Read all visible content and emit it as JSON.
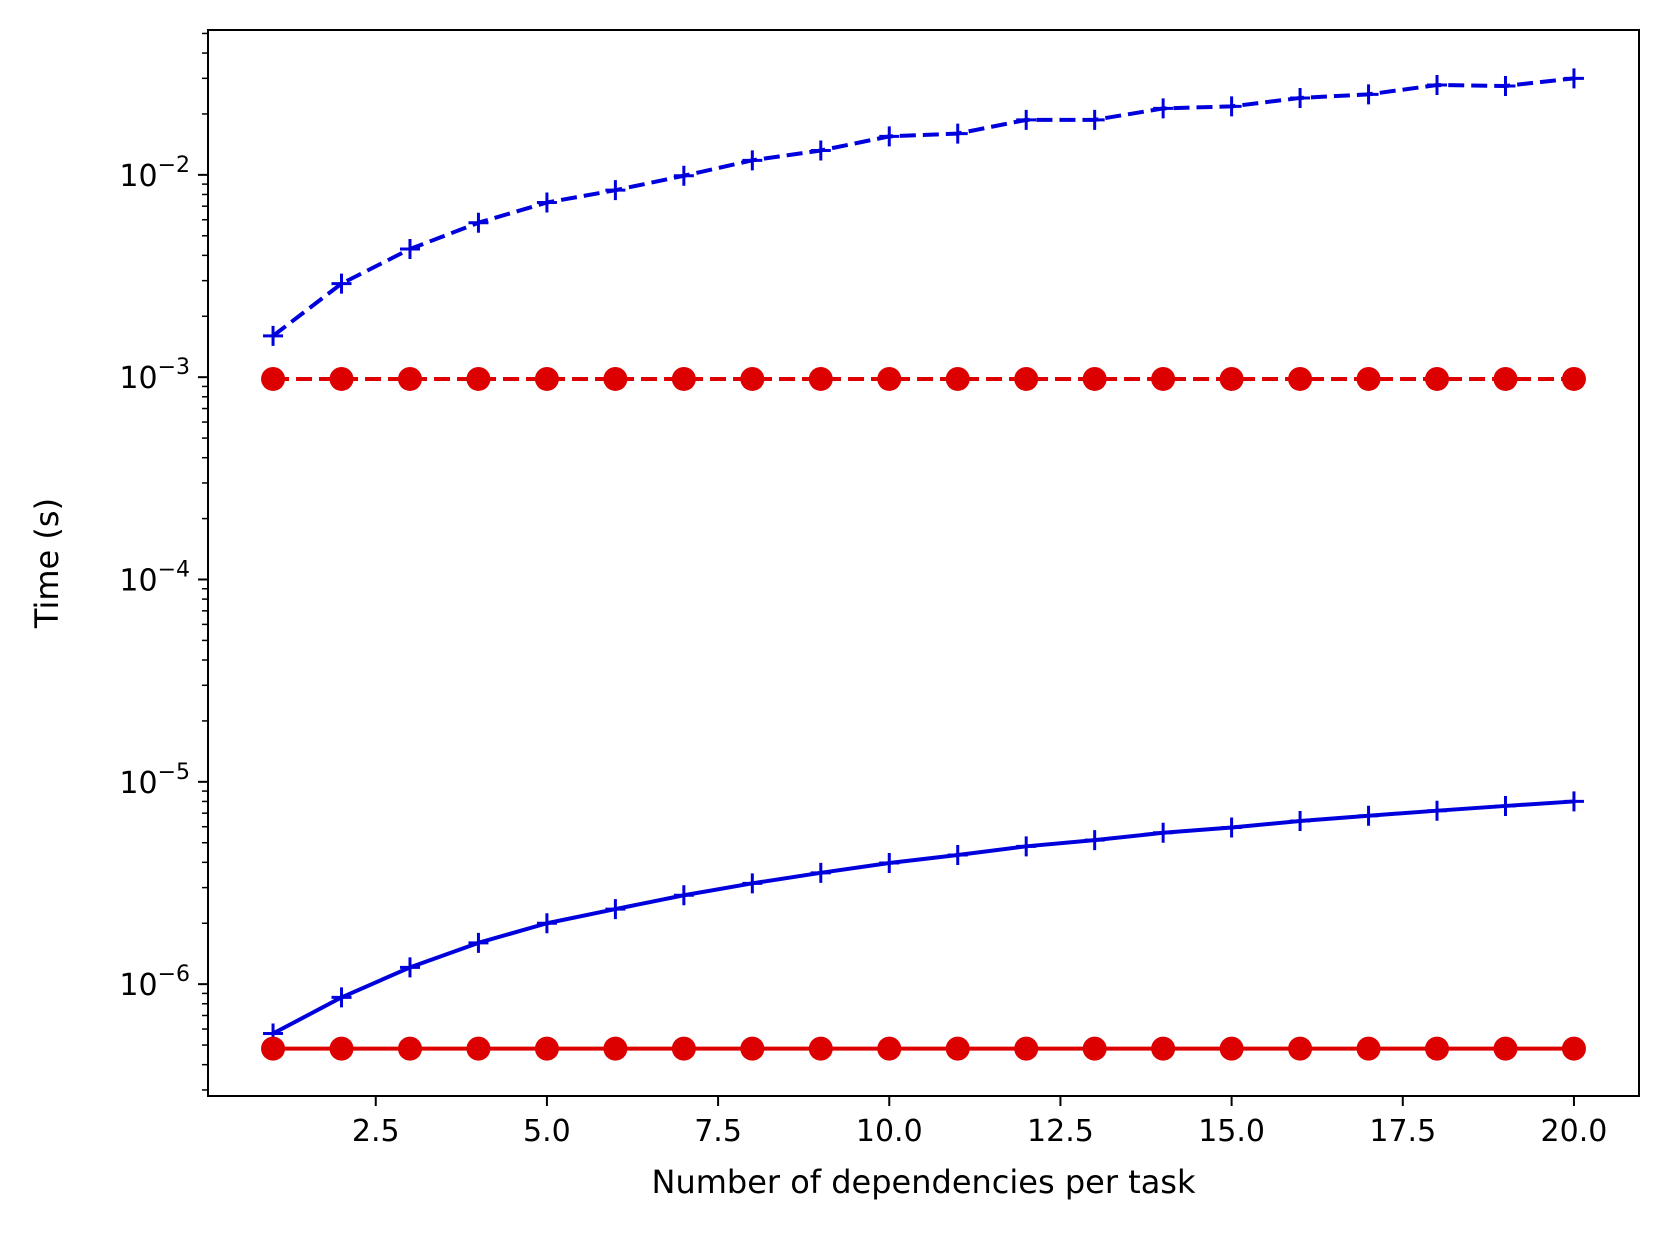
{
  "chart_data": {
    "type": "line",
    "xlabel": "Number of dependencies per task",
    "ylabel": "Time (s)",
    "yscale": "log",
    "xlim": [
      0.05,
      20.95
    ],
    "ylim": [
      2.8e-07,
      0.052
    ],
    "xticks": [
      2.5,
      5.0,
      7.5,
      10.0,
      12.5,
      15.0,
      17.5,
      20.0
    ],
    "xtick_labels": [
      "2.5",
      "5.0",
      "7.5",
      "10.0",
      "12.5",
      "15.0",
      "17.5",
      "20.0"
    ],
    "yticks": [
      1e-06,
      1e-05,
      0.0001,
      0.001,
      0.01
    ],
    "ytick_labels": [
      {
        "base": "10",
        "exp": "−6"
      },
      {
        "base": "10",
        "exp": "−5"
      },
      {
        "base": "10",
        "exp": "−4"
      },
      {
        "base": "10",
        "exp": "−3"
      },
      {
        "base": "10",
        "exp": "−2"
      }
    ],
    "grid": false,
    "x": [
      1,
      2,
      3,
      4,
      5,
      6,
      7,
      8,
      9,
      10,
      11,
      12,
      13,
      14,
      15,
      16,
      17,
      18,
      19,
      20
    ],
    "series": [
      {
        "color": "#0000dd",
        "line": "dashed",
        "marker": "plus",
        "values": [
          0.0016,
          0.0029,
          0.0043,
          0.0058,
          0.0073,
          0.0084,
          0.0099,
          0.0118,
          0.0132,
          0.0155,
          0.016,
          0.0187,
          0.0187,
          0.0213,
          0.0218,
          0.024,
          0.025,
          0.0278,
          0.0275,
          0.03
        ]
      },
      {
        "color": "#dd0000",
        "line": "dashed",
        "marker": "circle",
        "values": [
          0.00098,
          0.00098,
          0.00098,
          0.00098,
          0.00098,
          0.00098,
          0.00098,
          0.00098,
          0.00098,
          0.00098,
          0.00098,
          0.00098,
          0.00098,
          0.00098,
          0.00098,
          0.00098,
          0.00098,
          0.00098,
          0.00098,
          0.00098
        ]
      },
      {
        "color": "#0000dd",
        "line": "solid",
        "marker": "plus",
        "values": [
          5.7e-07,
          8.6e-07,
          1.21e-06,
          1.6e-06,
          2e-06,
          2.35e-06,
          2.75e-06,
          3.15e-06,
          3.55e-06,
          3.97e-06,
          4.35e-06,
          4.8e-06,
          5.15e-06,
          5.6e-06,
          5.95e-06,
          6.4e-06,
          6.8e-06,
          7.2e-06,
          7.6e-06,
          8e-06
        ]
      },
      {
        "color": "#dd0000",
        "line": "solid",
        "marker": "circle",
        "values": [
          4.8e-07,
          4.8e-07,
          4.8e-07,
          4.8e-07,
          4.8e-07,
          4.8e-07,
          4.8e-07,
          4.8e-07,
          4.8e-07,
          4.8e-07,
          4.8e-07,
          4.8e-07,
          4.8e-07,
          4.8e-07,
          4.8e-07,
          4.8e-07,
          4.8e-07,
          4.8e-07,
          4.8e-07,
          4.8e-07
        ]
      }
    ]
  }
}
